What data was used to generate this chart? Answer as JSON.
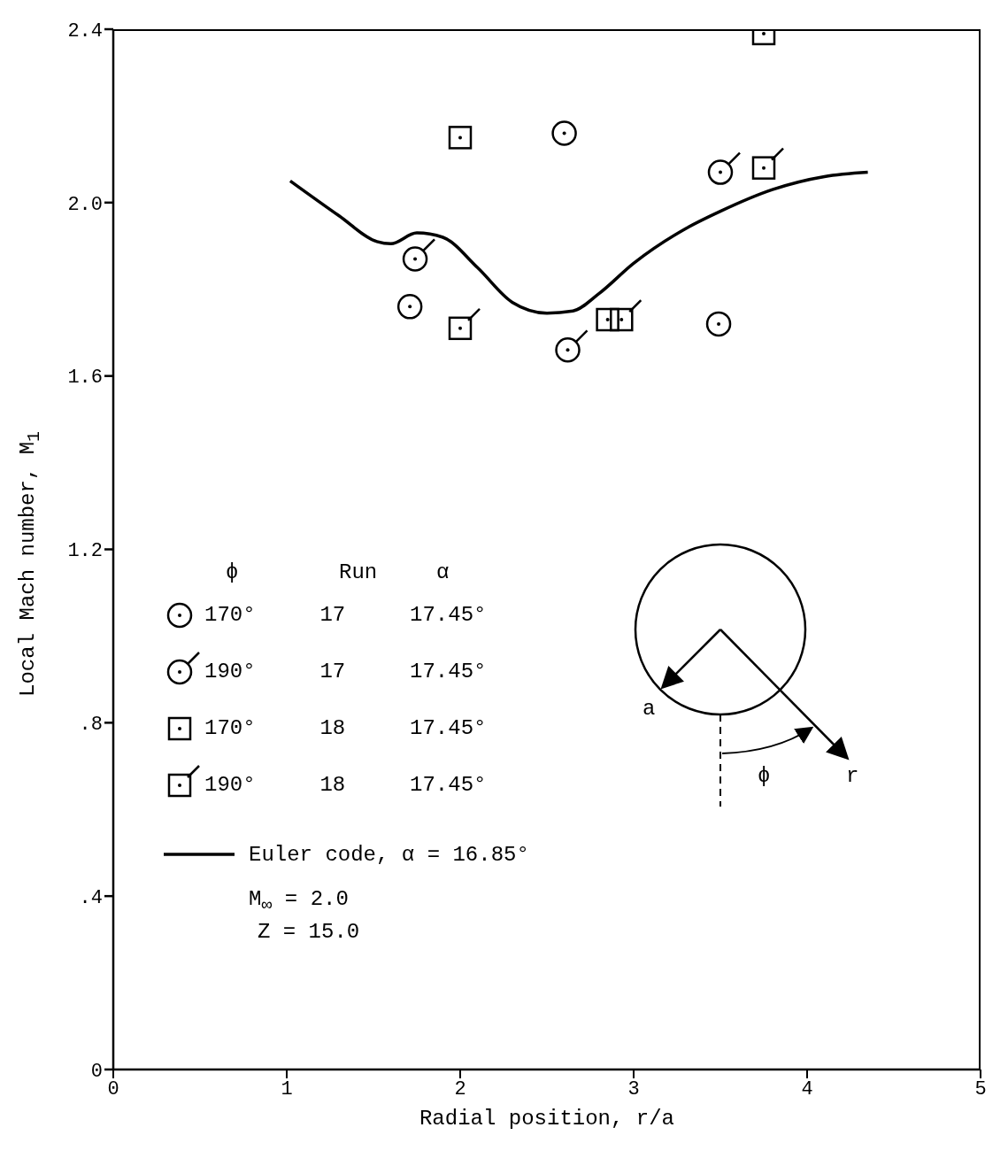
{
  "chart_data": {
    "type": "scatter",
    "xlabel": "Radial position, r/a",
    "ylabel": "Local Mach number, M$_{1}$",
    "legend_title": "ϕ  Run  α",
    "xlim": [
      0,
      5
    ],
    "xticks": [
      0,
      1,
      2,
      3,
      4,
      5
    ],
    "ylim": [
      0,
      2.4
    ],
    "yticks": [
      0,
      {
        "value": 0.4,
        "label": ".4"
      },
      {
        "value": 0.8,
        "label": ".8"
      },
      {
        "value": 1.2,
        "label": "1.2"
      },
      {
        "value": 1.6,
        "label": "1.6"
      },
      {
        "value": 2.0,
        "label": "2.0"
      },
      {
        "value": 2.4,
        "label": "2.4"
      }
    ],
    "grid": false,
    "legend": "bottom left",
    "series": [
      {
        "name": "170°  17  17.45°",
        "color": "#000000",
        "marker": "circle",
        "x": [
          1.71,
          2.6,
          3.49
        ],
        "values": [
          1.76,
          2.16,
          1.72
        ]
      },
      {
        "name": "190°  17  17.45°",
        "color": "#000000",
        "marker": "circle",
        "x": [
          1.74,
          2.62,
          3.5
        ],
        "values": [
          1.87,
          1.66,
          2.07
        ]
      },
      {
        "name": "170°  18  17.45°",
        "color": "#000000",
        "marker": "square",
        "x": [
          2.0,
          2.85,
          3.75
        ],
        "values": [
          2.15,
          1.73,
          2.39
        ]
      },
      {
        "name": "190°  18  17.45°",
        "color": "#000000",
        "marker": "square",
        "x": [
          2.0,
          2.93,
          3.75
        ],
        "values": [
          1.71,
          1.73,
          2.08
        ]
      },
      {
        "name": "Euler code, α = 16.85°",
        "type": "line",
        "color": "#000000",
        "line_style": "solid",
        "marker": "none",
        "x": [
          1.02,
          1.3,
          1.52,
          1.6,
          1.75,
          1.9,
          2.1,
          2.3,
          2.5,
          2.65,
          2.8,
          3.0,
          3.3,
          3.5,
          3.8,
          4.1,
          4.35
        ],
        "values": [
          2.05,
          1.97,
          1.91,
          1.905,
          1.93,
          1.92,
          1.85,
          1.77,
          1.745,
          1.75,
          1.79,
          1.86,
          1.94,
          1.98,
          2.03,
          2.06,
          2.07
        ]
      }
    ],
    "annotations": [
      "M$_{∞}$ = 2.0",
      "Z = 15.0",
      "a",
      "ϕ",
      "r"
    ]
  }
}
